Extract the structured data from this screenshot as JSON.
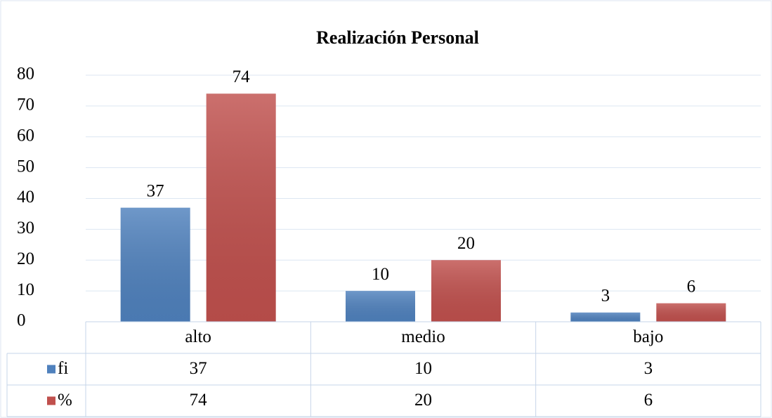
{
  "chart_data": {
    "type": "bar",
    "title": "Realización Personal",
    "categories": [
      "alto",
      "medio",
      "bajo"
    ],
    "series": [
      {
        "name": "fi",
        "color": "#4f81bd",
        "values": [
          37,
          10,
          3
        ]
      },
      {
        "name": "%",
        "color": "#c0504d",
        "values": [
          74,
          20,
          6
        ]
      }
    ],
    "ylim": [
      0,
      80
    ],
    "yticks": [
      0,
      10,
      20,
      30,
      40,
      50,
      60,
      70,
      80
    ],
    "grid": true,
    "data_table": true
  }
}
